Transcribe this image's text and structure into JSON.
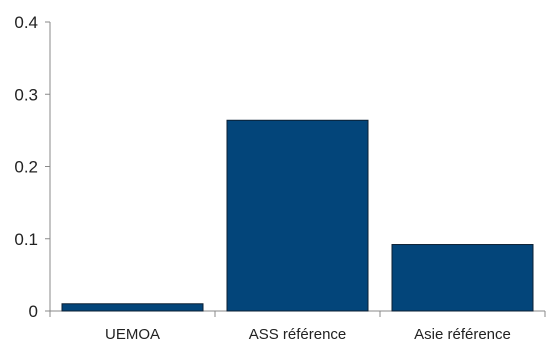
{
  "chart_data": {
    "type": "bar",
    "categories": [
      "UEMOA",
      "ASS référence",
      "Asie référence"
    ],
    "values": [
      0.01,
      0.264,
      0.092
    ],
    "ylim": [
      0,
      0.4
    ],
    "yticks": [
      0,
      0.1,
      0.2,
      0.3,
      0.4
    ],
    "ytick_labels": [
      "0",
      "0.1",
      "0.2",
      "0.3",
      "0.4"
    ],
    "grid": false,
    "legend": "none",
    "colors": {
      "bar": "#03457A",
      "bar_edge": "#0b1f33",
      "axis": "#888888"
    }
  }
}
